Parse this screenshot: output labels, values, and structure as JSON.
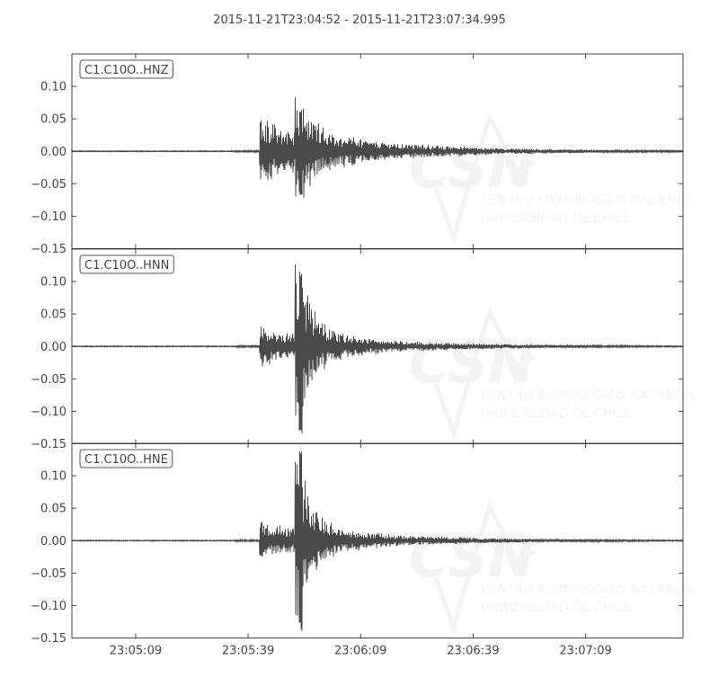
{
  "chart_data": {
    "type": "line",
    "title": "2015-11-21T23:04:52  -  2015-11-21T23:07:34.995",
    "start_time": "23:04:52",
    "end_time": "23:07:34.995",
    "xticks": [
      "23:05:09",
      "23:05:39",
      "23:06:09",
      "23:06:39",
      "23:07:09"
    ],
    "ylim": [
      -0.15,
      0.15
    ],
    "yticks": [
      "0.10",
      "0.05",
      "0.00",
      "−0.05",
      "−0.10",
      "−0.15"
    ],
    "ytick_values": [
      0.1,
      0.05,
      0.0,
      -0.05,
      -0.1,
      -0.15
    ],
    "grid": false,
    "trace_color": "#4a4a4a",
    "traces": [
      {
        "label": "C1.C10O..HNZ",
        "onset": "23:05:42",
        "peak_time": "23:05:53",
        "onset_amplitude": 0.065,
        "peak_max": 0.065,
        "peak_min": -0.07
      },
      {
        "label": "C1.C10O..HNN",
        "onset": "23:05:42",
        "peak_time": "23:05:53",
        "onset_amplitude": 0.04,
        "peak_max": 0.115,
        "peak_min": -0.14
      },
      {
        "label": "C1.C10O..HNE",
        "onset": "23:05:42",
        "peak_time": "23:05:53",
        "onset_amplitude": 0.04,
        "peak_max": 0.14,
        "peak_min": -0.14
      }
    ],
    "watermark": {
      "logo": "CSN",
      "line1": "CENTRO SISMOLÓGICO NACIONAL",
      "line2": "UNIVERSIDAD DE CHILE"
    }
  }
}
